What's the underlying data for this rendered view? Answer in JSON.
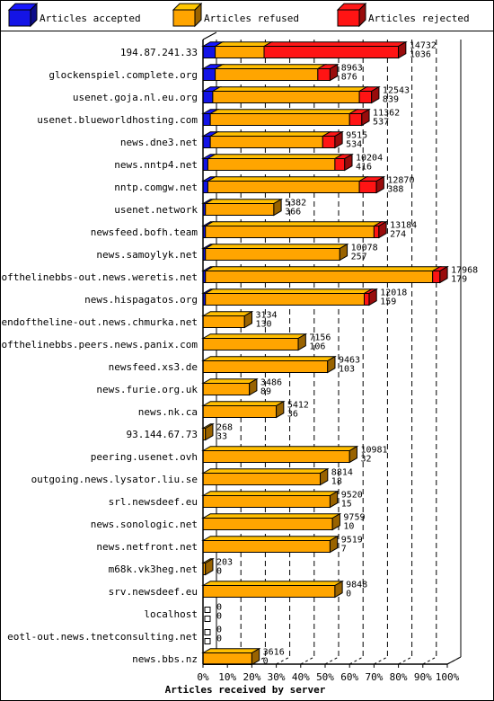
{
  "chart_data": {
    "type": "bar",
    "orientation": "horizontal",
    "stacked": true,
    "style": "3d",
    "xlabel": "Articles received by server",
    "xlim": [
      0,
      100
    ],
    "x_unit": "%",
    "ticks": [
      "0%",
      "10%",
      "20%",
      "30%",
      "40%",
      "50%",
      "60%",
      "70%",
      "80%",
      "90%",
      "100%"
    ],
    "grid": true,
    "legend_position": "top",
    "series": [
      {
        "key": "accepted",
        "name": "Articles accepted",
        "color": "#1414e6"
      },
      {
        "key": "refused",
        "name": "Articles refused",
        "color": "#ffa500"
      },
      {
        "key": "rejected",
        "name": "Articles rejected",
        "color": "#ff1414"
      }
    ],
    "categories": [
      {
        "server": "194.87.241.33",
        "total": "14732",
        "rejected": "1036",
        "pct": {
          "accepted": 5,
          "refused": 20,
          "rejected": 55
        }
      },
      {
        "server": "glockenspiel.complete.org",
        "total": "8963",
        "rejected": "876",
        "pct": {
          "accepted": 5,
          "refused": 42,
          "rejected": 5
        }
      },
      {
        "server": "usenet.goja.nl.eu.org",
        "total": "12543",
        "rejected": "839",
        "pct": {
          "accepted": 4,
          "refused": 60,
          "rejected": 5
        }
      },
      {
        "server": "usenet.blueworldhosting.com",
        "total": "11362",
        "rejected": "537",
        "pct": {
          "accepted": 3,
          "refused": 57,
          "rejected": 5
        }
      },
      {
        "server": "news.dne3.net",
        "total": "9515",
        "rejected": "534",
        "pct": {
          "accepted": 3,
          "refused": 46,
          "rejected": 5
        }
      },
      {
        "server": "news.nntp4.net",
        "total": "10204",
        "rejected": "416",
        "pct": {
          "accepted": 2,
          "refused": 52,
          "rejected": 4
        }
      },
      {
        "server": "nntp.comgw.net",
        "total": "12870",
        "rejected": "388",
        "pct": {
          "accepted": 2,
          "refused": 62,
          "rejected": 7
        }
      },
      {
        "server": "usenet.network",
        "total": "5382",
        "rejected": "366",
        "pct": {
          "accepted": 1,
          "refused": 28,
          "rejected": 0
        }
      },
      {
        "server": "newsfeed.bofh.team",
        "total": "13184",
        "rejected": "274",
        "pct": {
          "accepted": 1,
          "refused": 69,
          "rejected": 2
        }
      },
      {
        "server": "news.samoylyk.net",
        "total": "10078",
        "rejected": "257",
        "pct": {
          "accepted": 1,
          "refused": 55,
          "rejected": 0
        }
      },
      {
        "server": "endofthelinebbs-out.news.weretis.net",
        "total": "17968",
        "rejected": "179",
        "pct": {
          "accepted": 1,
          "refused": 93,
          "rejected": 3
        }
      },
      {
        "server": "news.hispagatos.org",
        "total": "12018",
        "rejected": "159",
        "pct": {
          "accepted": 1,
          "refused": 65,
          "rejected": 2
        }
      },
      {
        "server": "endoftheline-out.news.chmurka.net",
        "total": "3134",
        "rejected": "130",
        "pct": {
          "accepted": 0,
          "refused": 17,
          "rejected": 0
        }
      },
      {
        "server": "endofthelinebbs.peers.news.panix.com",
        "total": "7156",
        "rejected": "106",
        "pct": {
          "accepted": 0,
          "refused": 39,
          "rejected": 0
        }
      },
      {
        "server": "newsfeed.xs3.de",
        "total": "9463",
        "rejected": "103",
        "pct": {
          "accepted": 0,
          "refused": 51,
          "rejected": 0
        }
      },
      {
        "server": "news.furie.org.uk",
        "total": "3486",
        "rejected": "89",
        "pct": {
          "accepted": 0,
          "refused": 19,
          "rejected": 0
        }
      },
      {
        "server": "news.nk.ca",
        "total": "5412",
        "rejected": "36",
        "pct": {
          "accepted": 0,
          "refused": 30,
          "rejected": 0
        }
      },
      {
        "server": "93.144.67.73",
        "total": "268",
        "rejected": "33",
        "pct": {
          "accepted": 0,
          "refused": 1,
          "rejected": 0
        }
      },
      {
        "server": "peering.usenet.ovh",
        "total": "10981",
        "rejected": "32",
        "pct": {
          "accepted": 0,
          "refused": 60,
          "rejected": 0
        }
      },
      {
        "server": "outgoing.news.lysator.liu.se",
        "total": "8814",
        "rejected": "18",
        "pct": {
          "accepted": 0,
          "refused": 48,
          "rejected": 0
        }
      },
      {
        "server": "srl.newsdeef.eu",
        "total": "9520",
        "rejected": "15",
        "pct": {
          "accepted": 0,
          "refused": 52,
          "rejected": 0
        }
      },
      {
        "server": "news.sonologic.net",
        "total": "9759",
        "rejected": "10",
        "pct": {
          "accepted": 0,
          "refused": 53,
          "rejected": 0
        }
      },
      {
        "server": "news.netfront.net",
        "total": "9519",
        "rejected": "7",
        "pct": {
          "accepted": 0,
          "refused": 52,
          "rejected": 0
        }
      },
      {
        "server": "m68k.vk3heg.net",
        "total": "203",
        "rejected": "0",
        "pct": {
          "accepted": 0,
          "refused": 1,
          "rejected": 0
        }
      },
      {
        "server": "srv.newsdeef.eu",
        "total": "9848",
        "rejected": "0",
        "pct": {
          "accepted": 0,
          "refused": 54,
          "rejected": 0
        }
      },
      {
        "server": "localhost",
        "total": "0",
        "rejected": "0",
        "pct": {
          "accepted": 0,
          "refused": 0,
          "rejected": 0
        }
      },
      {
        "server": "eotl-out.news.tnetconsulting.net",
        "total": "0",
        "rejected": "0",
        "pct": {
          "accepted": 0,
          "refused": 0,
          "rejected": 0
        }
      },
      {
        "server": "news.bbs.nz",
        "total": "3616",
        "rejected": "0",
        "pct": {
          "accepted": 0,
          "refused": 20,
          "rejected": 0
        }
      }
    ]
  }
}
